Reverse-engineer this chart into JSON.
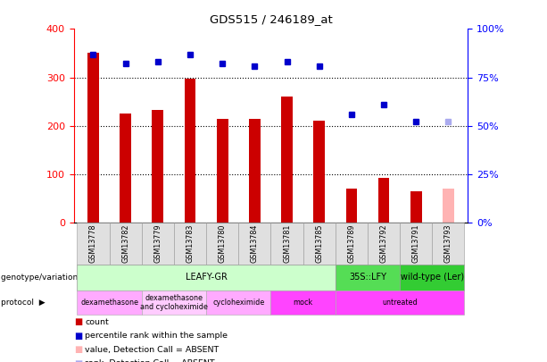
{
  "title": "GDS515 / 246189_at",
  "samples": [
    "GSM13778",
    "GSM13782",
    "GSM13779",
    "GSM13783",
    "GSM13780",
    "GSM13784",
    "GSM13781",
    "GSM13785",
    "GSM13789",
    "GSM13792",
    "GSM13791",
    "GSM13793"
  ],
  "counts_all": [
    350,
    225,
    232,
    297,
    215,
    215,
    260,
    210,
    70,
    93,
    65,
    70
  ],
  "absent_bar_indices": [
    11
  ],
  "no_bar_indices": [],
  "ranks_pct": [
    87,
    82,
    83,
    87,
    82,
    81,
    83,
    81,
    56,
    61,
    52,
    52
  ],
  "absent_rank_indices": [
    11
  ],
  "ylim_left": [
    0,
    400
  ],
  "ylim_right": [
    0,
    100
  ],
  "left_ticks": [
    0,
    100,
    200,
    300,
    400
  ],
  "right_ticks": [
    0,
    25,
    50,
    75,
    100
  ],
  "bar_color": "#cc0000",
  "absent_bar_color": "#ffb3b3",
  "rank_color": "#0000cc",
  "absent_rank_color": "#aaaaee",
  "genotype_groups": [
    {
      "label": "LEAFY-GR",
      "start": 0,
      "end": 8,
      "color": "#ccffcc"
    },
    {
      "label": "35S::LFY",
      "start": 8,
      "end": 10,
      "color": "#55dd55"
    },
    {
      "label": "wild-type (Ler)",
      "start": 10,
      "end": 12,
      "color": "#33cc33"
    }
  ],
  "protocol_groups": [
    {
      "label": "dexamethasone",
      "start": 0,
      "end": 2,
      "color": "#ffaaff"
    },
    {
      "label": "dexamethasone\nand cycloheximide",
      "start": 2,
      "end": 4,
      "color": "#ffccff"
    },
    {
      "label": "cycloheximide",
      "start": 4,
      "end": 6,
      "color": "#ffaaff"
    },
    {
      "label": "mock",
      "start": 6,
      "end": 8,
      "color": "#ff44ff"
    },
    {
      "label": "untreated",
      "start": 8,
      "end": 12,
      "color": "#ff44ff"
    }
  ],
  "legend": [
    {
      "label": "count",
      "color": "#cc0000"
    },
    {
      "label": "percentile rank within the sample",
      "color": "#0000cc"
    },
    {
      "label": "value, Detection Call = ABSENT",
      "color": "#ffb3b3"
    },
    {
      "label": "rank, Detection Call = ABSENT",
      "color": "#aaaaee"
    }
  ]
}
